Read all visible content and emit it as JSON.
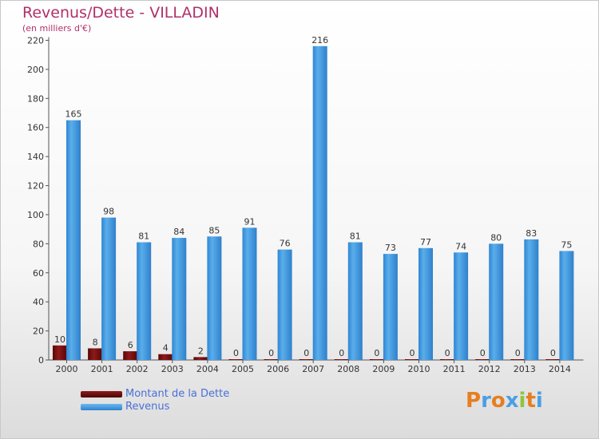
{
  "header": {
    "title": "Revenus/Dette - VILLADIN",
    "subtitle": "(en milliers d'€)"
  },
  "chart_data": {
    "type": "bar",
    "categories": [
      "2000",
      "2001",
      "2002",
      "2003",
      "2004",
      "2005",
      "2006",
      "2007",
      "2008",
      "2009",
      "2010",
      "2011",
      "2012",
      "2013",
      "2014"
    ],
    "series": [
      {
        "name": "Montant de la Dette",
        "color": "#7a0f0f",
        "values": [
          10,
          8,
          6,
          4,
          2,
          0,
          0,
          0,
          0,
          0,
          0,
          0,
          0,
          0,
          0
        ]
      },
      {
        "name": "Revenus",
        "color": "#4a9fe3",
        "values": [
          165,
          98,
          81,
          84,
          85,
          91,
          76,
          216,
          81,
          73,
          77,
          74,
          80,
          83,
          75
        ]
      }
    ],
    "ylim": [
      0,
      220
    ],
    "yticks": [
      0,
      20,
      40,
      60,
      80,
      100,
      120,
      140,
      160,
      180,
      200,
      220
    ],
    "grid": false,
    "legend_position": "bottom-left"
  },
  "legend": {
    "items": [
      {
        "label": "Montant de la Dette",
        "color": "#7a0f0f"
      },
      {
        "label": "Revenus",
        "color": "#4a9fe3"
      }
    ]
  },
  "brand": {
    "logo_text": "Proxiti"
  }
}
